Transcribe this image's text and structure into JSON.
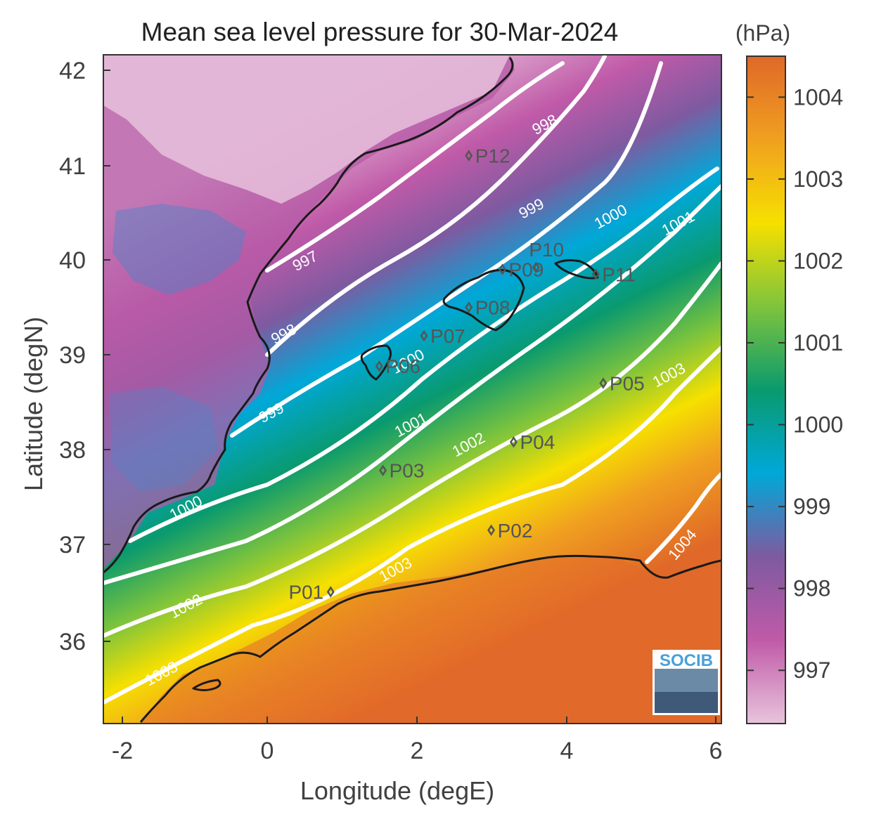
{
  "title": "Mean sea level pressure for 30-Mar-2024",
  "xlabel": "Longitude (degE)",
  "ylabel": "Latitude (degN)",
  "x_ticks": [
    "-2",
    "0",
    "2",
    "4",
    "6"
  ],
  "y_ticks": [
    "42",
    "41",
    "40",
    "39",
    "38",
    "37",
    "36"
  ],
  "colorbar": {
    "unit": "(hPa)",
    "ticks": [
      "1004",
      "1003",
      "1002",
      "1001",
      "1000",
      "999",
      "998",
      "997"
    ],
    "range": [
      996.35,
      1004.5
    ],
    "colors": [
      "#e8c4dc",
      "#c05aa8",
      "#7e5aa0",
      "#00a8d8",
      "#0a9a6e",
      "#7ec43c",
      "#f6e000",
      "#f0a020",
      "#e06828"
    ]
  },
  "logo": {
    "text": "SOCIB"
  },
  "contour_labels": [
    "997",
    "998",
    "998",
    "999",
    "999",
    "1000",
    "1000",
    "1000",
    "1001",
    "1001",
    "1002",
    "1002",
    "1003",
    "1003",
    "1003",
    "1004"
  ],
  "stations": [
    {
      "id": "P01",
      "lon": 0.85,
      "lat": 36.5
    },
    {
      "id": "P02",
      "lon": 3.0,
      "lat": 37.15
    },
    {
      "id": "P03",
      "lon": 1.55,
      "lat": 37.78
    },
    {
      "id": "P04",
      "lon": 3.3,
      "lat": 38.08
    },
    {
      "id": "P05",
      "lon": 4.5,
      "lat": 38.7
    },
    {
      "id": "P06",
      "lon": 1.5,
      "lat": 38.88
    },
    {
      "id": "P07",
      "lon": 2.1,
      "lat": 39.2
    },
    {
      "id": "P08",
      "lon": 2.7,
      "lat": 39.5
    },
    {
      "id": "P09",
      "lon": 3.15,
      "lat": 39.9
    },
    {
      "id": "P10",
      "lon": 3.6,
      "lat": 39.92
    },
    {
      "id": "P11",
      "lon": 4.4,
      "lat": 39.85
    },
    {
      "id": "P12",
      "lon": 2.7,
      "lat": 41.1
    }
  ],
  "colors": {
    "contour": "#ffffff",
    "coastline": "#1a1a1a",
    "station_marker": "#555555",
    "land_south": "#e06828",
    "land_north": "#c05aa8"
  }
}
